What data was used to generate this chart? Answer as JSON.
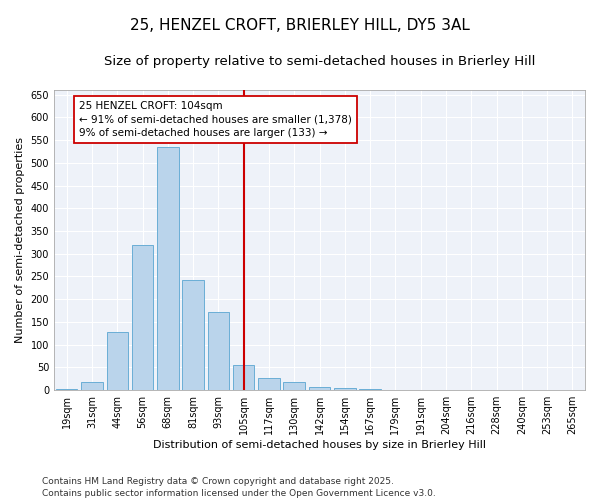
{
  "title": "25, HENZEL CROFT, BRIERLEY HILL, DY5 3AL",
  "subtitle": "Size of property relative to semi-detached houses in Brierley Hill",
  "xlabel": "Distribution of semi-detached houses by size in Brierley Hill",
  "ylabel": "Number of semi-detached properties",
  "categories": [
    "19sqm",
    "31sqm",
    "44sqm",
    "56sqm",
    "68sqm",
    "81sqm",
    "93sqm",
    "105sqm",
    "117sqm",
    "130sqm",
    "142sqm",
    "154sqm",
    "167sqm",
    "179sqm",
    "191sqm",
    "204sqm",
    "216sqm",
    "228sqm",
    "240sqm",
    "253sqm",
    "265sqm"
  ],
  "values": [
    3,
    18,
    128,
    320,
    535,
    243,
    173,
    55,
    27,
    17,
    8,
    5,
    3,
    0,
    1,
    0,
    0,
    0,
    1,
    0,
    1
  ],
  "bar_color": "#bad4eb",
  "bar_edge_color": "#6aaed6",
  "vline_x_index": 7,
  "vline_color": "#cc0000",
  "annotation_text": "25 HENZEL CROFT: 104sqm\n← 91% of semi-detached houses are smaller (1,378)\n9% of semi-detached houses are larger (133) →",
  "annotation_box_color": "#ffffff",
  "annotation_box_edge_color": "#cc0000",
  "ylim": [
    0,
    660
  ],
  "yticks": [
    0,
    50,
    100,
    150,
    200,
    250,
    300,
    350,
    400,
    450,
    500,
    550,
    600,
    650
  ],
  "bg_color": "#ffffff",
  "plot_bg_color": "#eef2f9",
  "grid_color": "#ffffff",
  "footer": "Contains HM Land Registry data © Crown copyright and database right 2025.\nContains public sector information licensed under the Open Government Licence v3.0.",
  "title_fontsize": 11,
  "subtitle_fontsize": 9.5,
  "axis_label_fontsize": 8,
  "tick_fontsize": 7,
  "annotation_fontsize": 7.5,
  "footer_fontsize": 6.5
}
